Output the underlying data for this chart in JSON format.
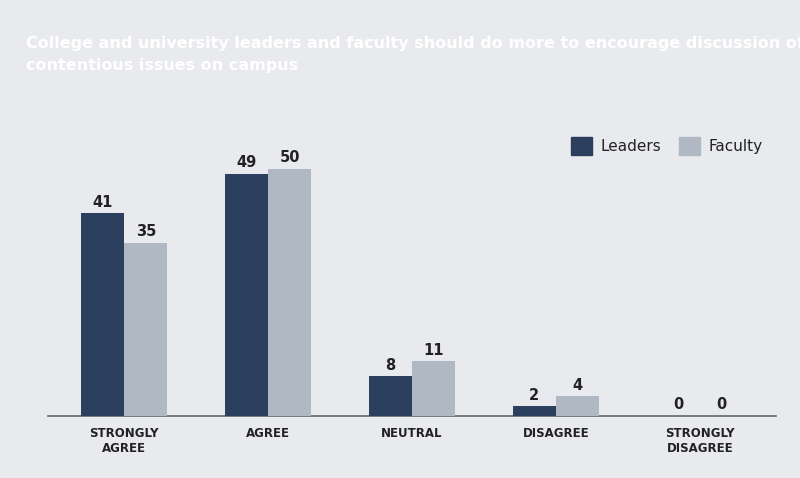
{
  "title_line1": "College and university leaders and faculty should do more to encourage discussion of",
  "title_line2": "contentious issues on campus",
  "categories": [
    "STRONGLY\nAGREE",
    "AGREE",
    "NEUTRAL",
    "DISAGREE",
    "STRONGLY\nDISAGREE"
  ],
  "leaders_values": [
    41,
    49,
    8,
    2,
    0
  ],
  "faculty_values": [
    35,
    50,
    11,
    4,
    0
  ],
  "leaders_color": "#2d3f5e",
  "faculty_color": "#b0b8c4",
  "background_color": "#e8eaed",
  "title_bg_color": "#2d3f5e",
  "title_text_color": "#ffffff",
  "bar_width": 0.3,
  "ylim": [
    0,
    58
  ],
  "legend_labels": [
    "Leaders",
    "Faculty"
  ],
  "value_fontsize": 10.5,
  "axis_label_fontsize": 8.5
}
